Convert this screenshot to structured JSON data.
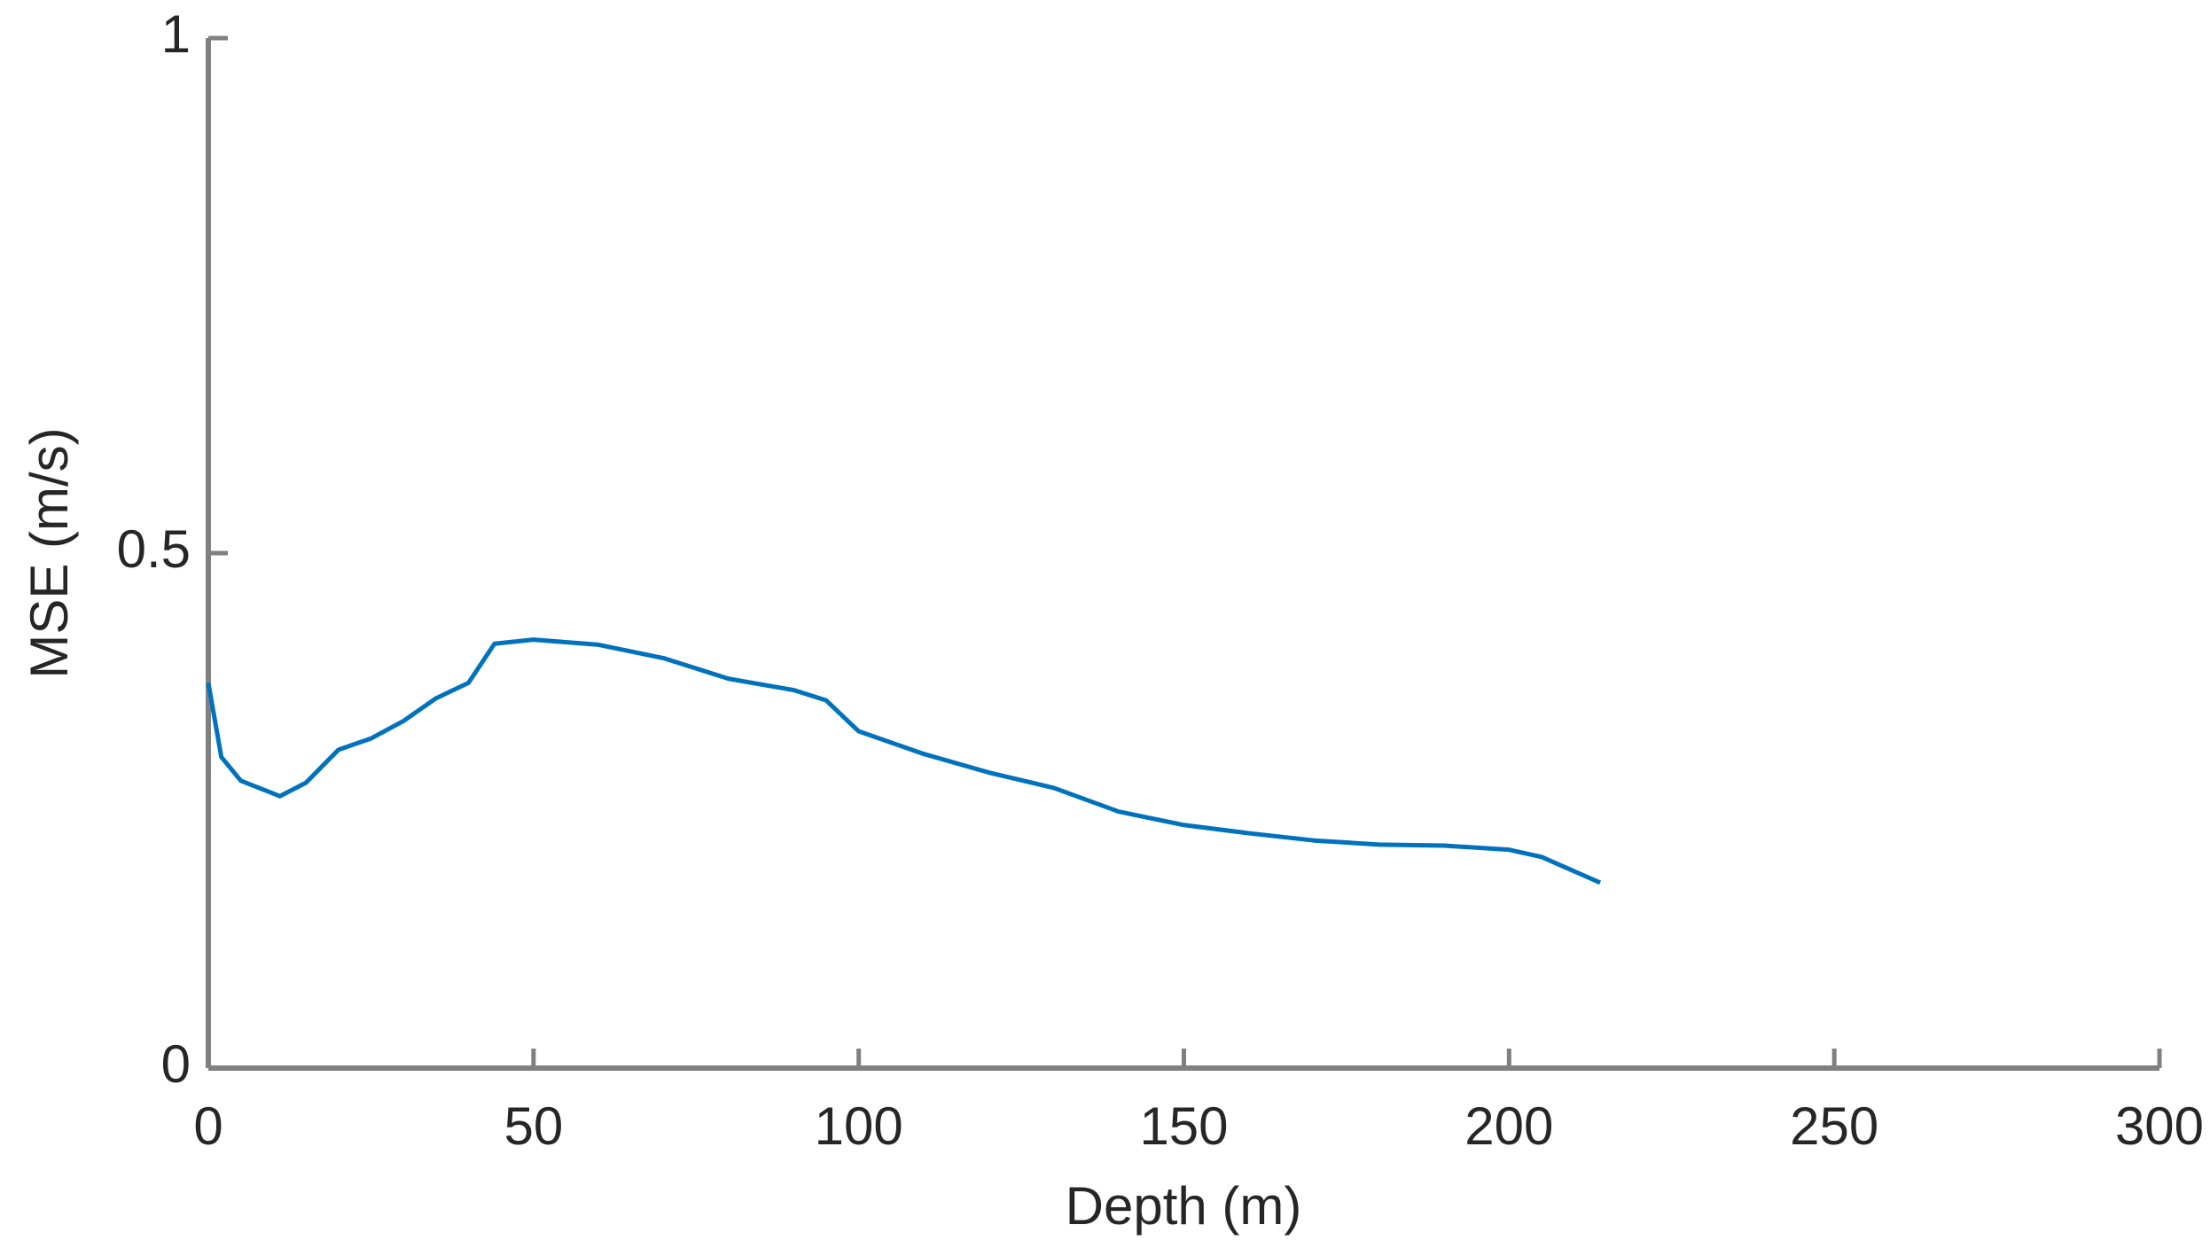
{
  "chart_data": {
    "type": "line",
    "xlabel": "Depth (m)",
    "ylabel": "MSE (m/s)",
    "x": [
      0,
      2,
      5,
      11,
      15,
      20,
      25,
      30,
      35,
      40,
      44,
      50,
      60,
      70,
      80,
      90,
      95,
      100,
      110,
      120,
      130,
      140,
      150,
      160,
      170,
      180,
      190,
      200,
      205,
      214
    ],
    "series": [
      {
        "color": "#0072bd",
        "values": [
          0.374,
          0.302,
          0.279,
          0.264,
          0.277,
          0.309,
          0.32,
          0.337,
          0.359,
          0.374,
          0.412,
          0.416,
          0.411,
          0.398,
          0.378,
          0.367,
          0.357,
          0.327,
          0.305,
          0.287,
          0.272,
          0.249,
          0.236,
          0.228,
          0.221,
          0.217,
          0.216,
          0.212,
          0.205,
          0.18
        ]
      }
    ],
    "xlim": [
      0,
      300
    ],
    "xticks": [
      0,
      50,
      100,
      150,
      200,
      250,
      300
    ],
    "ylim": [
      0,
      1
    ],
    "yticks": [
      0,
      0.5,
      1
    ],
    "grid": false
  }
}
